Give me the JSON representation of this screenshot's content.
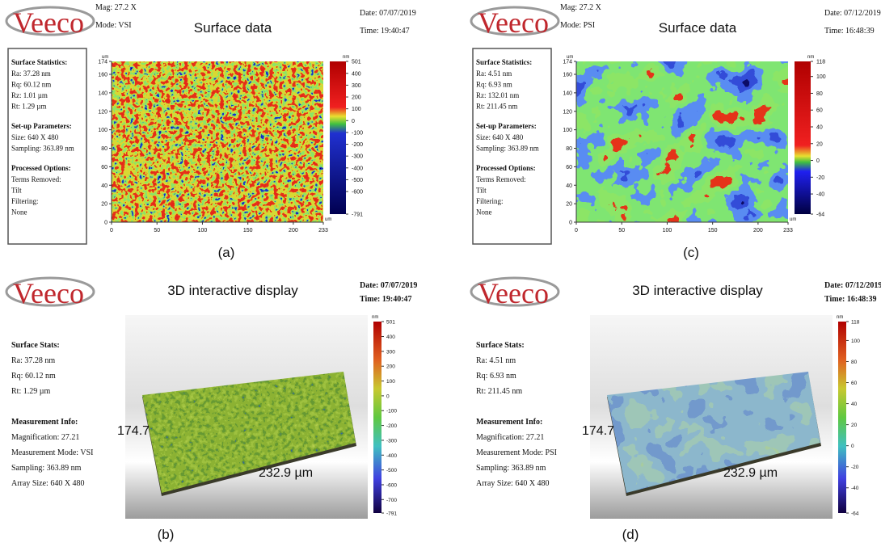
{
  "panels": [
    {
      "label": "(a)",
      "logo": "Veeco",
      "mag": "Mag: 27.2 X",
      "mode": "Mode: VSI",
      "title": "Surface data",
      "date": "Date: 07/07/2019",
      "time": "Time: 19:40:47",
      "stats": [
        {
          "heading": "Surface Statistics:",
          "lines": [
            "Ra: 37.28 nm",
            "Rq: 60.12 nm",
            "Rz: 1.01 µm",
            "Rt: 1.29 µm"
          ]
        },
        {
          "heading": "Set-up Parameters:",
          "lines": [
            "Size: 640 X 480",
            "Sampling: 363.89 nm"
          ]
        },
        {
          "heading": "Processed Options:",
          "lines": [
            "Terms Removed:",
            "Tilt",
            "Filtering:",
            "None"
          ]
        }
      ],
      "y_unit": "um",
      "x_unit": "um",
      "yticks": [
        174,
        160,
        140,
        120,
        100,
        80,
        60,
        40,
        20,
        0
      ],
      "xticks": [
        0,
        50,
        100,
        150,
        200,
        233
      ],
      "colorbar_unit": "nm",
      "colorbar_ticks": [
        501,
        400,
        300,
        200,
        100,
        0,
        -100,
        -200,
        -300,
        -400,
        -500,
        -600,
        -791
      ]
    },
    {
      "label": "(b)",
      "logo": "Veeco",
      "title": "3D interactive display",
      "date": "Date: 07/07/2019",
      "time": "Time: 19:40:47",
      "stats": [
        {
          "heading": "Surface Stats:",
          "lines": [
            "Ra: 37.28 nm",
            "Rq: 60.12 nm",
            "Rt: 1.29 µm"
          ]
        },
        {
          "heading": "Measurement Info:",
          "lines": [
            "Magnification: 27.21",
            "Measurement Mode: VSI",
            "Sampling: 363.89 nm",
            "Array Size: 640 X 480"
          ]
        }
      ],
      "y_extent": "174.7",
      "x_extent": "232.9 µm",
      "colorbar_unit": "nm",
      "colorbar_ticks": [
        501,
        400,
        300,
        200,
        100,
        0,
        -100,
        -200,
        -300,
        -400,
        -500,
        -600,
        -700,
        -791
      ]
    },
    {
      "label": "(c)",
      "logo": "Veeco",
      "mag": "Mag: 27.2 X",
      "mode": "Mode: PSI",
      "title": "Surface data",
      "date": "Date: 07/12/2019",
      "time": "Time: 16:48:39",
      "stats": [
        {
          "heading": "Surface Statistics:",
          "lines": [
            "Ra: 4.51 nm",
            "Rq: 6.93 nm",
            "Rz: 132.01 nm",
            "Rt: 211.45 nm"
          ]
        },
        {
          "heading": "Set-up Parameters:",
          "lines": [
            "Size: 640 X 480",
            "Sampling: 363.89 nm"
          ]
        },
        {
          "heading": "Processed Options:",
          "lines": [
            "Terms Removed:",
            "Tilt",
            "Filtering:",
            "None"
          ]
        }
      ],
      "y_unit": "um",
      "x_unit": "um",
      "yticks": [
        174,
        160,
        140,
        120,
        100,
        80,
        60,
        40,
        20,
        0
      ],
      "xticks": [
        0,
        50,
        100,
        150,
        200,
        233
      ],
      "colorbar_unit": "nm",
      "colorbar_ticks": [
        118,
        100,
        80,
        60,
        40,
        20,
        0,
        -20,
        -40,
        -64
      ]
    },
    {
      "label": "(d)",
      "logo": "Veeco",
      "title": "3D interactive display",
      "date": "Date: 07/12/2019",
      "time": "Time: 16:48:39",
      "stats": [
        {
          "heading": "Surface Stats:",
          "lines": [
            "Ra: 4.51 nm",
            "Rq: 6.93 nm",
            "Rt: 211.45 nm"
          ]
        },
        {
          "heading": "Measurement Info:",
          "lines": [
            "Magnification: 27.21",
            "Measurement Mode: PSI",
            "Sampling: 363.89 nm",
            "Array Size: 640 X 480"
          ]
        }
      ],
      "y_extent": "174.7",
      "x_extent": "232.9 µm",
      "colorbar_unit": "nm",
      "colorbar_ticks": [
        118,
        100,
        80,
        60,
        40,
        20,
        0,
        -20,
        -40,
        -64
      ]
    }
  ]
}
